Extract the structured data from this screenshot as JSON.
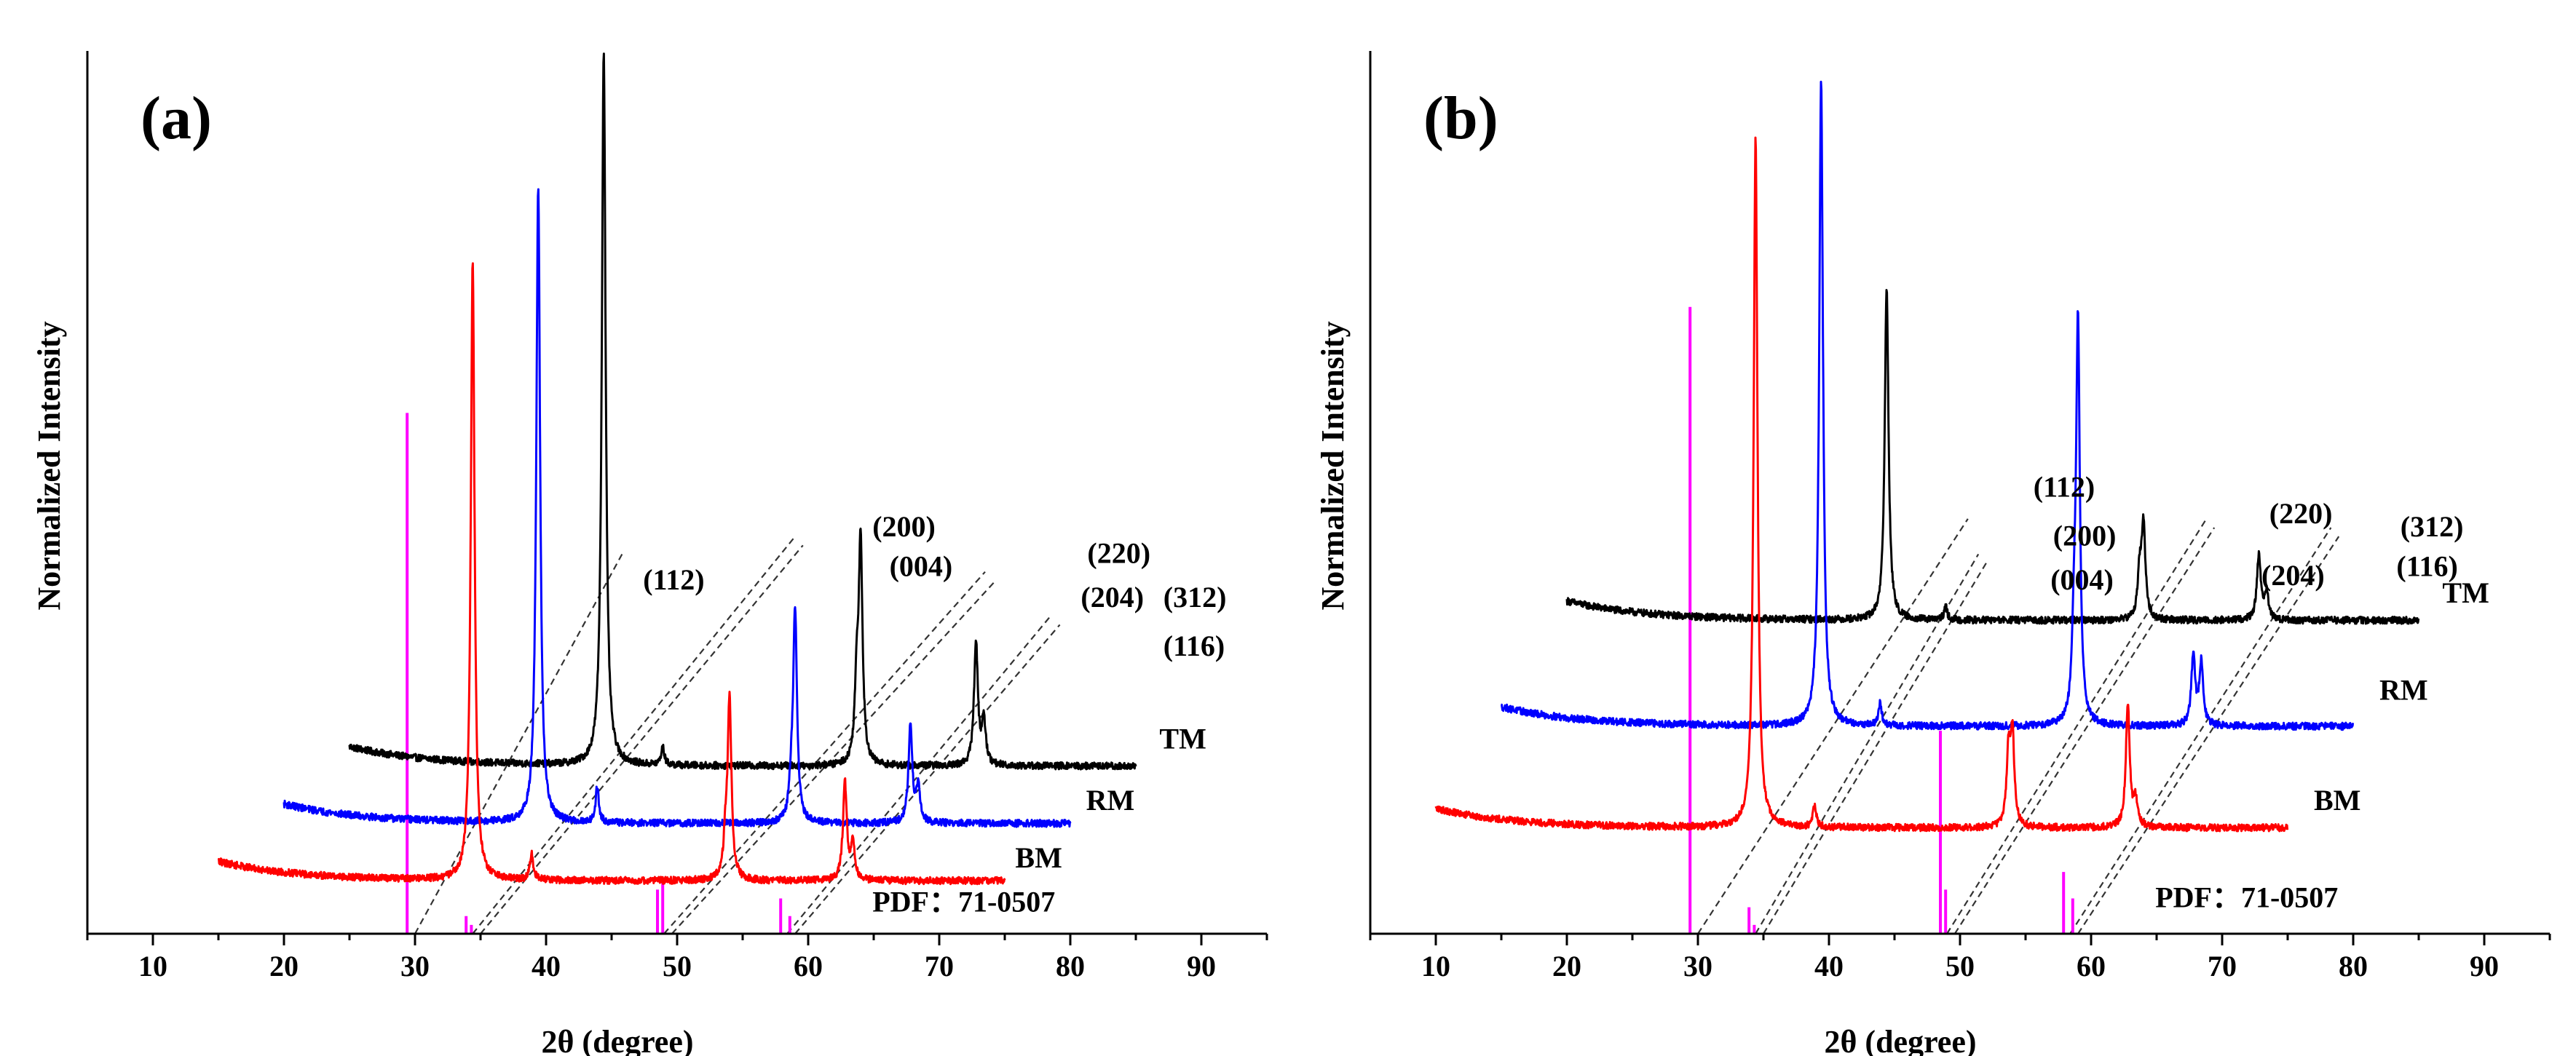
{
  "figure": {
    "colors": {
      "TM": "#000000",
      "RM": "#0000ff",
      "BM": "#ff0000",
      "PDF": "#ff00ff",
      "guide": "#333333"
    }
  },
  "chart_data": [
    {
      "panel": "(a)",
      "type": "line",
      "xlabel": "2θ (degree)",
      "ylabel": "Normalized Intensity",
      "xlim": [
        5,
        95
      ],
      "ylim": [
        0,
        1
      ],
      "xticks": [
        10,
        20,
        30,
        40,
        50,
        60,
        70,
        80,
        90
      ],
      "grid": false,
      "series": [
        {
          "name": "TM",
          "color": "#000000",
          "xshift": 10,
          "baseline": 0.19,
          "range": [
            25,
            85
          ],
          "peaks": [
            {
              "x": 34.4,
              "h": 0.81,
              "w": 0.35
            },
            {
              "x": 38.9,
              "h": 0.02,
              "w": 0.3
            },
            {
              "x": 53.7,
              "h": 0.08,
              "w": 0.35
            },
            {
              "x": 54.0,
              "h": 0.25,
              "w": 0.35
            },
            {
              "x": 62.8,
              "h": 0.14,
              "w": 0.35
            },
            {
              "x": 63.4,
              "h": 0.05,
              "w": 0.35
            }
          ]
        },
        {
          "name": "RM",
          "color": "#0000ff",
          "xshift": 5,
          "baseline": 0.125,
          "range": [
            20,
            80
          ],
          "peaks": [
            {
              "x": 34.4,
              "h": 0.72,
              "w": 0.35
            },
            {
              "x": 38.9,
              "h": 0.04,
              "w": 0.3
            },
            {
              "x": 53.7,
              "h": 0.03,
              "w": 0.35
            },
            {
              "x": 54.0,
              "h": 0.24,
              "w": 0.35
            },
            {
              "x": 62.8,
              "h": 0.11,
              "w": 0.35
            },
            {
              "x": 63.4,
              "h": 0.04,
              "w": 0.35
            }
          ]
        },
        {
          "name": "BM",
          "color": "#ff0000",
          "xshift": 0,
          "baseline": 0.06,
          "range": [
            15,
            75
          ],
          "peaks": [
            {
              "x": 34.4,
              "h": 0.7,
              "w": 0.35
            },
            {
              "x": 38.9,
              "h": 0.03,
              "w": 0.3
            },
            {
              "x": 53.7,
              "h": 0.04,
              "w": 0.35
            },
            {
              "x": 54.0,
              "h": 0.2,
              "w": 0.35
            },
            {
              "x": 62.8,
              "h": 0.11,
              "w": 0.35
            },
            {
              "x": 63.4,
              "h": 0.04,
              "w": 0.35
            }
          ]
        }
      ],
      "reference": {
        "name": "PDF：71-0507",
        "color": "#ff00ff",
        "peaks": [
          {
            "x": 29.4,
            "h": 0.59
          },
          {
            "x": 33.9,
            "h": 0.02
          },
          {
            "x": 34.3,
            "h": 0.01
          },
          {
            "x": 48.5,
            "h": 0.05
          },
          {
            "x": 48.9,
            "h": 0.06
          },
          {
            "x": 57.9,
            "h": 0.04
          },
          {
            "x": 58.6,
            "h": 0.02
          }
        ]
      },
      "guides": [
        {
          "hkl": "(112)",
          "x0": 30.0,
          "x1": 45.8,
          "y1": 0.43
        },
        {
          "hkl": "(200)",
          "x0": 34.4,
          "x1": 59.0,
          "y1": 0.45
        },
        {
          "hkl": "(004)",
          "x0": 35.0,
          "x1": 59.6,
          "y1": 0.44
        },
        {
          "hkl": "(220)",
          "x0": 49.0,
          "x1": 73.5,
          "y1": 0.41
        },
        {
          "hkl": "(204)",
          "x0": 49.6,
          "x1": 74.3,
          "y1": 0.4
        },
        {
          "hkl": "(312)",
          "x0": 58.4,
          "x1": 78.5,
          "y1": 0.36
        },
        {
          "hkl": "(116)",
          "x0": 59.0,
          "x1": 79.2,
          "y1": 0.35
        }
      ],
      "labels": [
        {
          "text": "(112)",
          "x": 47.4,
          "y": 0.39
        },
        {
          "text": "(200)",
          "x": 64.9,
          "y": 0.45
        },
        {
          "text": "(004)",
          "x": 66.2,
          "y": 0.405
        },
        {
          "text": "(220)",
          "x": 81.3,
          "y": 0.42
        },
        {
          "text": "(204)",
          "x": 80.8,
          "y": 0.37
        },
        {
          "text": "(312)",
          "x": 87.1,
          "y": 0.37
        },
        {
          "text": "(116)",
          "x": 87.1,
          "y": 0.315
        },
        {
          "text": "TM",
          "x": 86.8,
          "y": 0.21
        },
        {
          "text": "RM",
          "x": 81.2,
          "y": 0.14
        },
        {
          "text": "BM",
          "x": 75.8,
          "y": 0.075
        },
        {
          "text": "PDF：71-0507",
          "x": 64.9,
          "y": 0.025
        }
      ]
    },
    {
      "panel": "(b)",
      "type": "line",
      "xlabel": "2θ (degree)",
      "ylabel": "Normalized Intensity",
      "xlim": [
        5,
        95
      ],
      "ylim": [
        0,
        1
      ],
      "xticks": [
        10,
        20,
        30,
        40,
        50,
        60,
        70,
        80,
        90
      ],
      "grid": false,
      "series": [
        {
          "name": "TM",
          "color": "#000000",
          "xshift": 10,
          "baseline": 0.355,
          "range": [
            20,
            85
          ],
          "peaks": [
            {
              "x": 34.4,
              "h": 0.375,
              "w": 0.35
            },
            {
              "x": 38.9,
              "h": 0.015,
              "w": 0.3
            },
            {
              "x": 53.7,
              "h": 0.05,
              "w": 0.35
            },
            {
              "x": 54.0,
              "h": 0.105,
              "w": 0.35
            },
            {
              "x": 62.8,
              "h": 0.075,
              "w": 0.35
            },
            {
              "x": 63.4,
              "h": 0.03,
              "w": 0.35
            }
          ]
        },
        {
          "name": "RM",
          "color": "#0000ff",
          "xshift": 5,
          "baseline": 0.235,
          "range": [
            15,
            80
          ],
          "peaks": [
            {
              "x": 34.4,
              "h": 0.73,
              "w": 0.35
            },
            {
              "x": 38.9,
              "h": 0.025,
              "w": 0.3
            },
            {
              "x": 53.7,
              "h": 0.08,
              "w": 0.35
            },
            {
              "x": 54.0,
              "h": 0.45,
              "w": 0.35
            },
            {
              "x": 62.8,
              "h": 0.08,
              "w": 0.35
            },
            {
              "x": 63.4,
              "h": 0.07,
              "w": 0.35
            }
          ]
        },
        {
          "name": "BM",
          "color": "#ff0000",
          "xshift": 0,
          "baseline": 0.12,
          "range": [
            10,
            75
          ],
          "peaks": [
            {
              "x": 34.4,
              "h": 0.78,
              "w": 0.35
            },
            {
              "x": 38.9,
              "h": 0.025,
              "w": 0.3
            },
            {
              "x": 53.7,
              "h": 0.08,
              "w": 0.35
            },
            {
              "x": 54.0,
              "h": 0.1,
              "w": 0.35
            },
            {
              "x": 62.8,
              "h": 0.14,
              "w": 0.35
            },
            {
              "x": 63.4,
              "h": 0.03,
              "w": 0.35
            }
          ]
        }
      ],
      "reference": {
        "name": "PDF：71-0507",
        "color": "#ff00ff",
        "peaks": [
          {
            "x": 29.4,
            "h": 0.71
          },
          {
            "x": 33.9,
            "h": 0.03
          },
          {
            "x": 34.3,
            "h": 0.01
          },
          {
            "x": 48.5,
            "h": 0.23
          },
          {
            "x": 48.9,
            "h": 0.05
          },
          {
            "x": 57.9,
            "h": 0.07
          },
          {
            "x": 58.6,
            "h": 0.04
          }
        ]
      },
      "guides": [
        {
          "hkl": "(112)",
          "x0": 30.0,
          "x1": 50.6,
          "y1": 0.47
        },
        {
          "hkl": "(200)",
          "x0": 34.4,
          "x1": 51.4,
          "y1": 0.43
        },
        {
          "hkl": "(004)",
          "x0": 35.0,
          "x1": 52.0,
          "y1": 0.42
        },
        {
          "hkl": "(220)",
          "x0": 49.0,
          "x1": 68.8,
          "y1": 0.47
        },
        {
          "hkl": "(204)",
          "x0": 49.6,
          "x1": 69.4,
          "y1": 0.46
        },
        {
          "hkl": "(312)",
          "x0": 58.4,
          "x1": 78.3,
          "y1": 0.46
        },
        {
          "hkl": "(116)",
          "x0": 59.0,
          "x1": 78.9,
          "y1": 0.45
        }
      ],
      "labels": [
        {
          "text": "(112)",
          "x": 55.6,
          "y": 0.495
        },
        {
          "text": "(200)",
          "x": 57.1,
          "y": 0.44
        },
        {
          "text": "(004)",
          "x": 56.9,
          "y": 0.39
        },
        {
          "text": "(220)",
          "x": 73.6,
          "y": 0.465
        },
        {
          "text": "(204)",
          "x": 73.0,
          "y": 0.395
        },
        {
          "text": "(312)",
          "x": 83.6,
          "y": 0.45
        },
        {
          "text": "(116)",
          "x": 83.3,
          "y": 0.405
        },
        {
          "text": "TM",
          "x": 86.8,
          "y": 0.375
        },
        {
          "text": "RM",
          "x": 82.0,
          "y": 0.265
        },
        {
          "text": "BM",
          "x": 77.0,
          "y": 0.14
        },
        {
          "text": "PDF：71-0507",
          "x": 64.9,
          "y": 0.03
        }
      ]
    }
  ]
}
